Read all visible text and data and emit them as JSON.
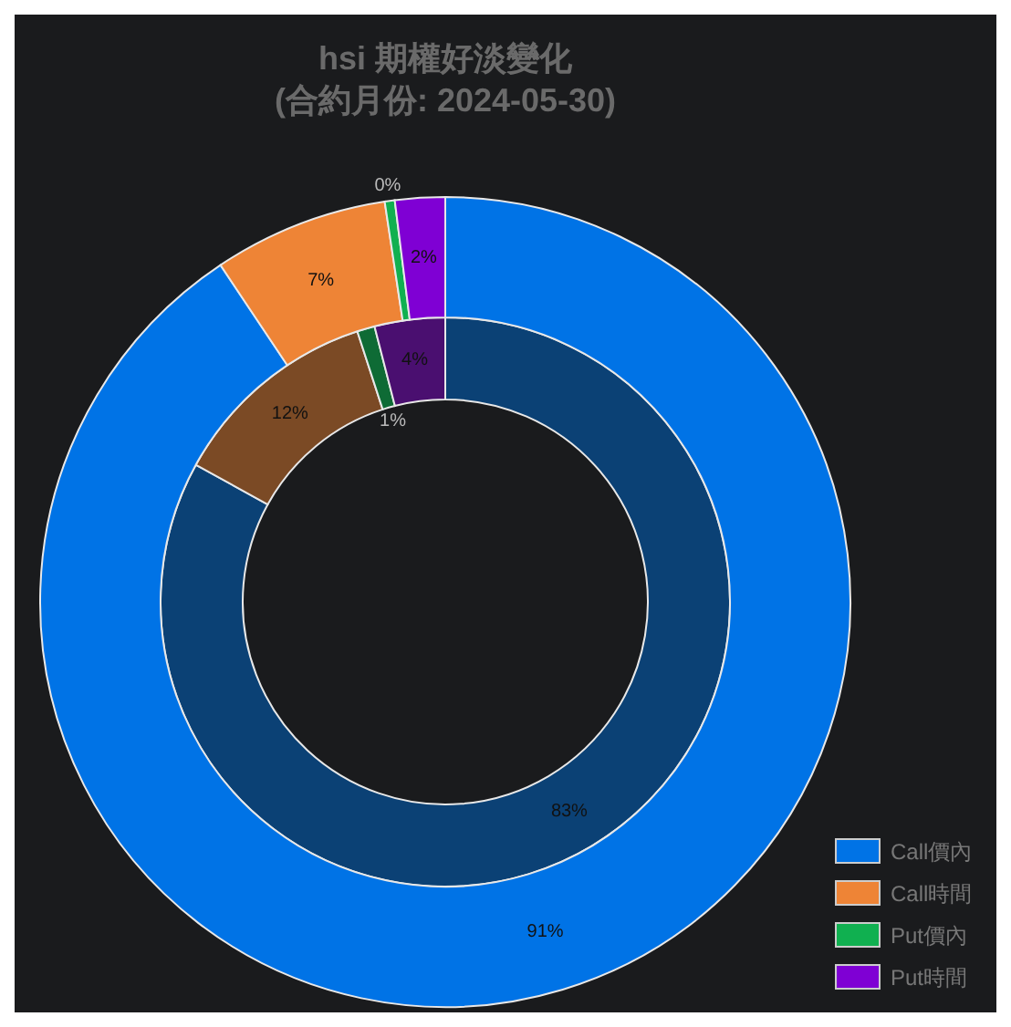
{
  "chart_data": {
    "type": "donut",
    "title": "hsi 期權好淡變化",
    "subtitle": "(合約月份: 2024-05-30)",
    "categories": [
      "Call價內",
      "Call時間",
      "Put價內",
      "Put時間"
    ],
    "series": [
      {
        "values": [
          83,
          12,
          1,
          4
        ],
        "value_labels": [
          "83%",
          "12%",
          "1%",
          "4%"
        ],
        "colors": [
          "#0b4175",
          "#7b4a25",
          "#0e6b35",
          "#4a0f70"
        ]
      },
      {
        "values": [
          91,
          7,
          0.4,
          2
        ],
        "value_labels": [
          "91%",
          "7%",
          "0%",
          "2%"
        ],
        "colors": [
          "#0073e6",
          "#ee8436",
          "#10b050",
          "#7f00d4"
        ]
      }
    ],
    "legend": "bottom right"
  }
}
